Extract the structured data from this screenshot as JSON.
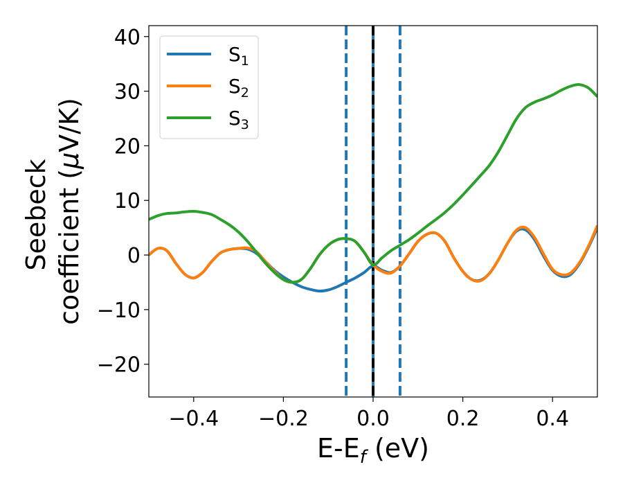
{
  "chart_data": {
    "type": "line",
    "xlabel": {
      "base": "E-E",
      "sub": "f",
      "tail": " (eV)"
    },
    "ylabel": {
      "line1": "Seebeck",
      "line2": "coefficient  (",
      "mu": "μ",
      "tail": "V/K)"
    },
    "xlim": [
      -0.5,
      0.5
    ],
    "ylim": [
      -26,
      42
    ],
    "xticks": [
      -0.4,
      -0.2,
      0.0,
      0.2,
      0.4
    ],
    "xtick_labels": [
      "−0.4",
      "−0.2",
      "0.0",
      "0.2",
      "0.4"
    ],
    "yticks": [
      -20,
      -10,
      0,
      10,
      20,
      30,
      40
    ],
    "ytick_labels": [
      "−20",
      "−10",
      "0",
      "10",
      "20",
      "30",
      "40"
    ],
    "grid": false,
    "legend_position": "top-left",
    "vlines": [
      {
        "x": -0.06,
        "style": "dashed",
        "color": "#1f77b4"
      },
      {
        "x": 0.0,
        "style": "solid",
        "color": "#1f77b4"
      },
      {
        "x": 0.0,
        "style": "dashed",
        "color": "#000000"
      },
      {
        "x": 0.06,
        "style": "dashed",
        "color": "#1f77b4"
      }
    ],
    "series": [
      {
        "name": "S",
        "sub": "1",
        "color": "#1f77b4",
        "points": [
          [
            -0.5,
            0
          ],
          [
            -0.48,
            1.2
          ],
          [
            -0.46,
            0.8
          ],
          [
            -0.44,
            -1.5
          ],
          [
            -0.42,
            -3.5
          ],
          [
            -0.4,
            -4.2
          ],
          [
            -0.38,
            -3.2
          ],
          [
            -0.36,
            -1.2
          ],
          [
            -0.34,
            0.4
          ],
          [
            -0.32,
            1.0
          ],
          [
            -0.3,
            1.2
          ],
          [
            -0.28,
            1.1
          ],
          [
            -0.26,
            0.3
          ],
          [
            -0.24,
            -1.2
          ],
          [
            -0.22,
            -2.8
          ],
          [
            -0.2,
            -4.0
          ],
          [
            -0.18,
            -5.0
          ],
          [
            -0.16,
            -5.8
          ],
          [
            -0.14,
            -6.3
          ],
          [
            -0.12,
            -6.6
          ],
          [
            -0.1,
            -6.4
          ],
          [
            -0.08,
            -5.8
          ],
          [
            -0.06,
            -5.0
          ],
          [
            -0.04,
            -4.2
          ],
          [
            -0.02,
            -3.2
          ],
          [
            0.0,
            -2.0
          ],
          [
            0.02,
            -2.8
          ],
          [
            0.04,
            -3.2
          ],
          [
            0.06,
            -2.0
          ],
          [
            0.08,
            0.2
          ],
          [
            0.1,
            2.5
          ],
          [
            0.12,
            3.8
          ],
          [
            0.14,
            4.0
          ],
          [
            0.16,
            2.5
          ],
          [
            0.18,
            -0.5
          ],
          [
            0.2,
            -3.0
          ],
          [
            0.22,
            -4.5
          ],
          [
            0.24,
            -4.6
          ],
          [
            0.26,
            -3.3
          ],
          [
            0.28,
            -0.8
          ],
          [
            0.3,
            2.2
          ],
          [
            0.32,
            4.4
          ],
          [
            0.34,
            4.6
          ],
          [
            0.36,
            2.8
          ],
          [
            0.38,
            -0.2
          ],
          [
            0.4,
            -2.8
          ],
          [
            0.42,
            -3.9
          ],
          [
            0.44,
            -3.6
          ],
          [
            0.46,
            -1.6
          ],
          [
            0.48,
            1.4
          ],
          [
            0.5,
            5.0
          ]
        ]
      },
      {
        "name": "S",
        "sub": "2",
        "color": "#ff7f0e",
        "points": [
          [
            -0.5,
            0
          ],
          [
            -0.48,
            1.2
          ],
          [
            -0.46,
            0.8
          ],
          [
            -0.44,
            -1.5
          ],
          [
            -0.42,
            -3.5
          ],
          [
            -0.4,
            -4.2
          ],
          [
            -0.38,
            -3.2
          ],
          [
            -0.36,
            -1.2
          ],
          [
            -0.34,
            0.4
          ],
          [
            -0.32,
            1.0
          ],
          [
            -0.3,
            1.2
          ],
          [
            -0.28,
            1.3
          ],
          [
            -0.26,
            0.6
          ],
          [
            -0.24,
            -1.2
          ],
          [
            -0.22,
            -3.0
          ],
          [
            -0.2,
            -4.5
          ],
          [
            -0.18,
            -5.0
          ],
          [
            -0.16,
            -4.5
          ],
          [
            -0.14,
            -2.5
          ],
          [
            -0.12,
            0.0
          ],
          [
            -0.1,
            1.8
          ],
          [
            -0.08,
            2.8
          ],
          [
            -0.06,
            3.0
          ],
          [
            -0.04,
            2.5
          ],
          [
            -0.02,
            0.5
          ],
          [
            0.0,
            -1.8
          ],
          [
            0.02,
            -3.0
          ],
          [
            0.04,
            -3.3
          ],
          [
            0.06,
            -2.0
          ],
          [
            0.08,
            0.2
          ],
          [
            0.1,
            2.5
          ],
          [
            0.12,
            3.8
          ],
          [
            0.14,
            4.0
          ],
          [
            0.16,
            2.5
          ],
          [
            0.18,
            -0.5
          ],
          [
            0.2,
            -3.0
          ],
          [
            0.22,
            -4.5
          ],
          [
            0.24,
            -4.7
          ],
          [
            0.26,
            -3.3
          ],
          [
            0.28,
            -0.8
          ],
          [
            0.3,
            2.2
          ],
          [
            0.32,
            4.6
          ],
          [
            0.34,
            5.0
          ],
          [
            0.36,
            3.2
          ],
          [
            0.38,
            0.2
          ],
          [
            0.4,
            -2.6
          ],
          [
            0.42,
            -3.6
          ],
          [
            0.44,
            -3.3
          ],
          [
            0.46,
            -1.4
          ],
          [
            0.48,
            1.6
          ],
          [
            0.5,
            5.4
          ]
        ]
      },
      {
        "name": "S",
        "sub": "3",
        "color": "#2ca02c",
        "points": [
          [
            -0.5,
            6.5
          ],
          [
            -0.48,
            7.2
          ],
          [
            -0.46,
            7.6
          ],
          [
            -0.44,
            7.7
          ],
          [
            -0.42,
            7.9
          ],
          [
            -0.4,
            8.0
          ],
          [
            -0.38,
            7.8
          ],
          [
            -0.36,
            7.4
          ],
          [
            -0.34,
            6.5
          ],
          [
            -0.32,
            5.5
          ],
          [
            -0.3,
            4.2
          ],
          [
            -0.28,
            2.5
          ],
          [
            -0.26,
            0.5
          ],
          [
            -0.24,
            -1.5
          ],
          [
            -0.22,
            -3.2
          ],
          [
            -0.2,
            -4.5
          ],
          [
            -0.18,
            -5.0
          ],
          [
            -0.16,
            -4.5
          ],
          [
            -0.14,
            -2.5
          ],
          [
            -0.12,
            0.0
          ],
          [
            -0.1,
            1.8
          ],
          [
            -0.08,
            2.8
          ],
          [
            -0.06,
            3.0
          ],
          [
            -0.04,
            2.5
          ],
          [
            -0.02,
            0.5
          ],
          [
            0.0,
            -1.8
          ],
          [
            0.02,
            -0.5
          ],
          [
            0.04,
            0.8
          ],
          [
            0.06,
            1.8
          ],
          [
            0.08,
            2.8
          ],
          [
            0.1,
            4.0
          ],
          [
            0.12,
            5.3
          ],
          [
            0.14,
            6.5
          ],
          [
            0.16,
            7.8
          ],
          [
            0.18,
            9.3
          ],
          [
            0.2,
            11.0
          ],
          [
            0.22,
            12.8
          ],
          [
            0.24,
            14.6
          ],
          [
            0.26,
            16.5
          ],
          [
            0.28,
            19.0
          ],
          [
            0.3,
            22.0
          ],
          [
            0.32,
            25.0
          ],
          [
            0.34,
            27.0
          ],
          [
            0.36,
            28.0
          ],
          [
            0.38,
            28.6
          ],
          [
            0.4,
            29.3
          ],
          [
            0.42,
            30.2
          ],
          [
            0.44,
            30.9
          ],
          [
            0.46,
            31.2
          ],
          [
            0.48,
            30.6
          ],
          [
            0.5,
            29.0
          ]
        ]
      }
    ]
  }
}
